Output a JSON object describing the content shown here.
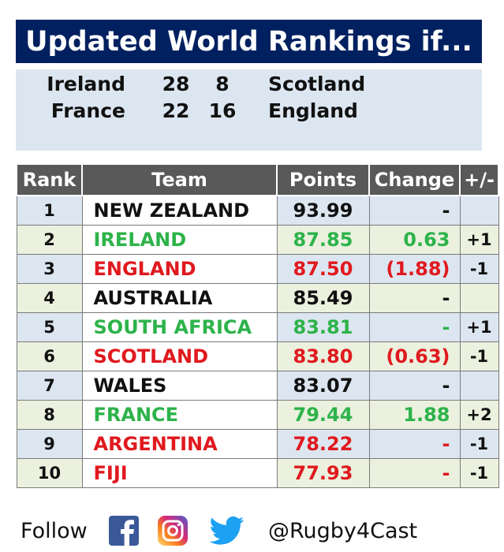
{
  "title": "Updated World Rankings if...",
  "results": [
    {
      "home": "Ireland",
      "home_score": "28",
      "away_score": "8",
      "away": "Scotland"
    },
    {
      "home": "France",
      "home_score": "22",
      "away_score": "16",
      "away": "England"
    }
  ],
  "table": {
    "headers": {
      "rank": "Rank",
      "team": "Team",
      "points": "Points",
      "change": "Change",
      "plusminus": "+/-"
    },
    "rows": [
      {
        "rank": "1",
        "team": "NEW ZEALAND",
        "points": "93.99",
        "change": "-",
        "pm": "",
        "status": "flat"
      },
      {
        "rank": "2",
        "team": "IRELAND",
        "points": "87.85",
        "change": "0.63",
        "pm": "+1",
        "status": "up"
      },
      {
        "rank": "3",
        "team": "ENGLAND",
        "points": "87.50",
        "change": "(1.88)",
        "pm": "-1",
        "status": "down"
      },
      {
        "rank": "4",
        "team": "AUSTRALIA",
        "points": "85.49",
        "change": "-",
        "pm": "",
        "status": "flat"
      },
      {
        "rank": "5",
        "team": "SOUTH AFRICA",
        "points": "83.81",
        "change": "-",
        "pm": "+1",
        "status": "up"
      },
      {
        "rank": "6",
        "team": "SCOTLAND",
        "points": "83.80",
        "change": "(0.63)",
        "pm": "-1",
        "status": "down"
      },
      {
        "rank": "7",
        "team": "WALES",
        "points": "83.07",
        "change": "-",
        "pm": "",
        "status": "flat"
      },
      {
        "rank": "8",
        "team": "FRANCE",
        "points": "79.44",
        "change": "1.88",
        "pm": "+2",
        "status": "up"
      },
      {
        "rank": "9",
        "team": "ARGENTINA",
        "points": "78.22",
        "change": "-",
        "pm": "-1",
        "status": "down"
      },
      {
        "rank": "10",
        "team": "FIJI",
        "points": "77.93",
        "change": "-",
        "pm": "-1",
        "status": "down"
      }
    ]
  },
  "footer": {
    "follow_label": "Follow",
    "handle": "@Rugby4Cast",
    "icons": [
      "facebook-icon",
      "instagram-icon",
      "twitter-icon"
    ]
  },
  "colors": {
    "title_bg": "#002060",
    "up": "#2db34a",
    "down": "#e0191e",
    "header_bg": "#595959"
  }
}
